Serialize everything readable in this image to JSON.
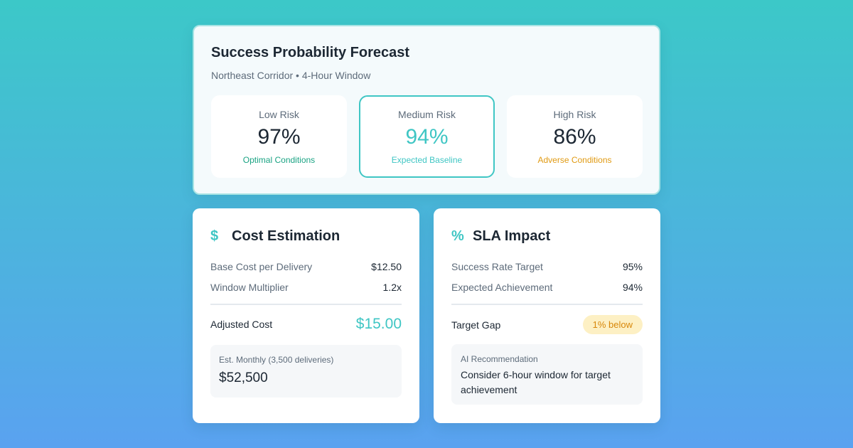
{
  "forecast": {
    "title": "Success Probability Forecast",
    "subtitle": "Northeast Corridor • 4-Hour Window",
    "scenarios": [
      {
        "label": "Low Risk",
        "value": "97%",
        "desc": "Optimal Conditions",
        "value_color": "#1c2733",
        "desc_color": "#1aa383"
      },
      {
        "label": "Medium Risk",
        "value": "94%",
        "desc": "Expected Baseline",
        "value_color": "#3fc6c4",
        "desc_color": "#3fc6c4",
        "selected": true
      },
      {
        "label": "High Risk",
        "value": "86%",
        "desc": "Adverse Conditions",
        "value_color": "#1c2733",
        "desc_color": "#e09a12"
      }
    ]
  },
  "cost": {
    "icon": "dollar-icon",
    "icon_glyph": "$",
    "title": "Cost Estimation",
    "rows": [
      {
        "label": "Base Cost per Delivery",
        "value": "$12.50"
      },
      {
        "label": "Window Multiplier",
        "value": "1.2x"
      }
    ],
    "total_label": "Adjusted Cost",
    "total_value": "$15.00",
    "monthly_label": "Est. Monthly (3,500 deliveries)",
    "monthly_value": "$52,500"
  },
  "sla": {
    "icon": "percent-icon",
    "icon_glyph": "%",
    "title": "SLA Impact",
    "rows": [
      {
        "label": "Success Rate Target",
        "value": "95%"
      },
      {
        "label": "Expected Achievement",
        "value": "94%"
      }
    ],
    "gap_label": "Target Gap",
    "gap_badge": "1% below",
    "rec_label": "AI Recommendation",
    "rec_text": "Consider 6-hour window for target achievement"
  },
  "colors": {
    "accent": "#3fc6c4",
    "success": "#1aa383",
    "warning": "#e09a12"
  }
}
